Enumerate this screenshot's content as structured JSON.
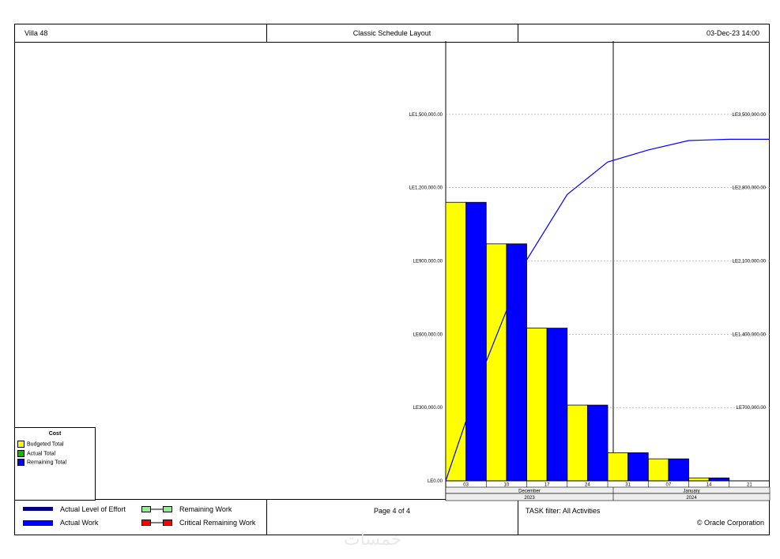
{
  "header": {
    "project": "Villa 48",
    "layout": "Classic Schedule Layout",
    "datetime": "03-Dec-23 14:00"
  },
  "footer": {
    "legend": {
      "actual_level_of_effort": "Actual Level of Effort",
      "actual_work": "Actual Work",
      "remaining_work": "Remaining Work",
      "critical_remaining_work": "Critical Remaining Work"
    },
    "page": "Page 4 of 4",
    "filter": "TASK filter: All Activities",
    "copyright": "© Oracle Corporation"
  },
  "cost_legend": {
    "title": "Cost",
    "items": [
      {
        "label": "Budgeted Total",
        "color": "#ffff00"
      },
      {
        "label": "Actual Total",
        "color": "#00c000"
      },
      {
        "label": "Remaining Total",
        "color": "#0000ff"
      }
    ]
  },
  "watermark": "خمسات",
  "colors": {
    "budgeted": "#ffff00",
    "remaining": "#0000ff",
    "cumulative_line": "#0000ff",
    "level_of_effort": "#000080",
    "remaining_work": "#90ee90",
    "critical": "#ff0000"
  },
  "chart_data": {
    "type": "bar",
    "categories": [
      "03",
      "10",
      "17",
      "24",
      "31",
      "07",
      "14",
      "21"
    ],
    "months": [
      {
        "label": "December",
        "year": "2023"
      },
      {
        "label": "January",
        "year": "2024"
      }
    ],
    "y_left": {
      "ticks": [
        "LE0.00",
        "LE300,000.00",
        "LE600,000.00",
        "LE900,000.00",
        "LE1,200,000.00",
        "LE1,500,000.00"
      ],
      "range": [
        0,
        1800000
      ]
    },
    "y_right": {
      "ticks": [
        "LE700,000.00",
        "LE1,400,000.00",
        "LE2,100,000.00",
        "LE2,800,000.00",
        "LE3,500,000.00"
      ],
      "range": [
        0,
        4200000
      ]
    },
    "series": [
      {
        "name": "Budgeted Total",
        "values": [
          1140000,
          970000,
          625000,
          310000,
          115000,
          90000,
          12000,
          0
        ]
      },
      {
        "name": "Remaining Total",
        "values": [
          1140000,
          970000,
          625000,
          310000,
          115000,
          90000,
          12000,
          0
        ]
      }
    ],
    "cumulative_line": {
      "x": [
        "03",
        "10",
        "17",
        "24",
        "31",
        "07",
        "14",
        "21",
        "end"
      ],
      "values": [
        0,
        1140000,
        2110000,
        2735000,
        3045000,
        3160000,
        3250000,
        3262000,
        3262000
      ]
    },
    "grid": true
  }
}
